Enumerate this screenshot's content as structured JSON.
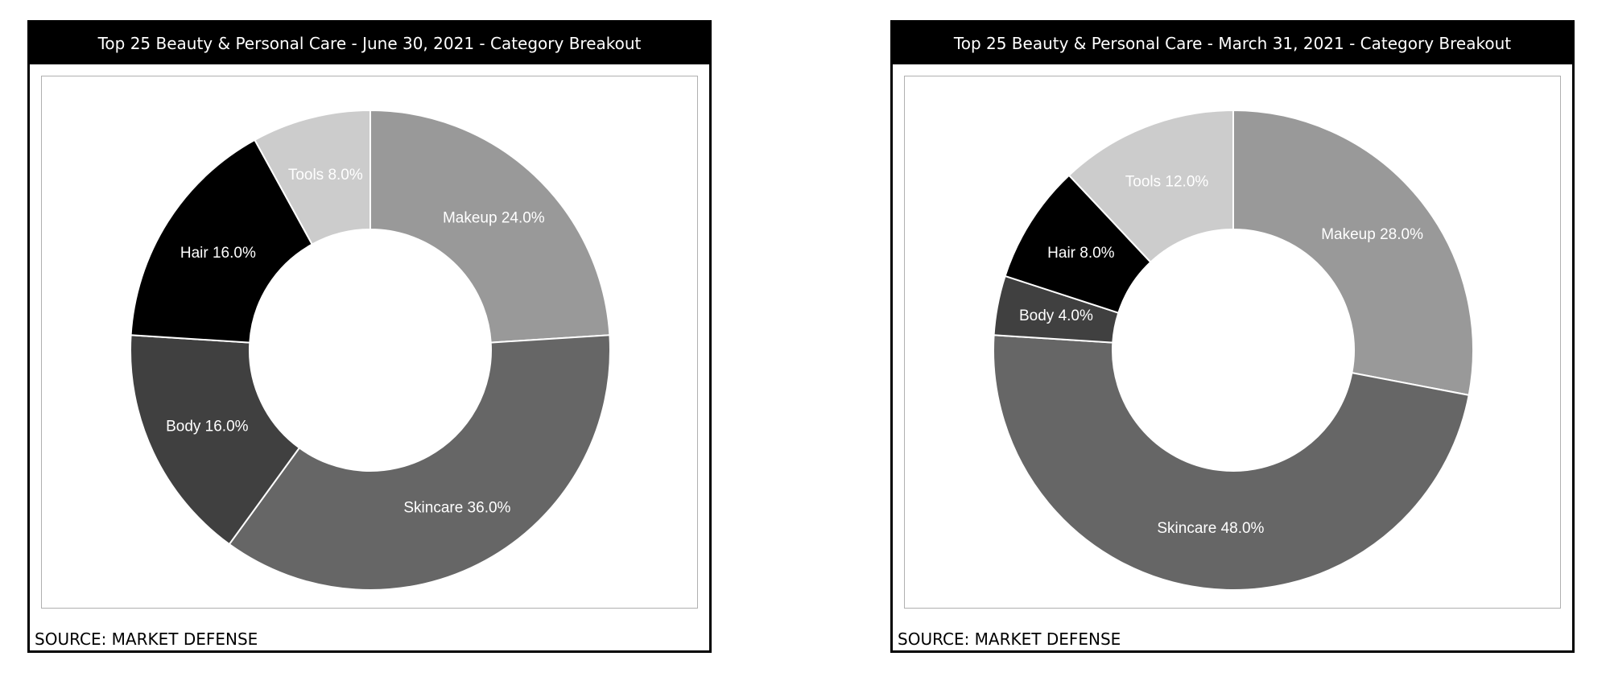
{
  "chart_data": [
    {
      "type": "pie",
      "title": "Top 25 Beauty & Personal Care - June 30, 2021 - Category Breakout",
      "source": "SOURCE: MARKET DEFENSE",
      "slices": [
        {
          "name": "Makeup",
          "value": 24.0,
          "label": "Makeup 24.0%",
          "color": "#999999",
          "text_color": "#ffffff"
        },
        {
          "name": "Skincare",
          "value": 36.0,
          "label": "Skincare 36.0%",
          "color": "#666666",
          "text_color": "#ffffff"
        },
        {
          "name": "Body",
          "value": 16.0,
          "label": "Body 16.0%",
          "color": "#404040",
          "text_color": "#ffffff"
        },
        {
          "name": "Hair",
          "value": 16.0,
          "label": "Hair 16.0%",
          "color": "#000000",
          "text_color": "#ffffff"
        },
        {
          "name": "Tools",
          "value": 8.0,
          "label": "Tools 8.0%",
          "color": "#cccccc",
          "text_color": "#ffffff"
        }
      ]
    },
    {
      "type": "pie",
      "title": "Top 25 Beauty & Personal Care - March 31, 2021 - Category Breakout",
      "source": "SOURCE: MARKET DEFENSE",
      "slices": [
        {
          "name": "Makeup",
          "value": 28.0,
          "label": "Makeup 28.0%",
          "color": "#999999",
          "text_color": "#ffffff"
        },
        {
          "name": "Skincare",
          "value": 48.0,
          "label": "Skincare 48.0%",
          "color": "#666666",
          "text_color": "#ffffff"
        },
        {
          "name": "Body",
          "value": 4.0,
          "label": "Body 4.0%",
          "color": "#404040",
          "text_color": "#ffffff"
        },
        {
          "name": "Hair",
          "value": 8.0,
          "label": "Hair 8.0%",
          "color": "#000000",
          "text_color": "#ffffff"
        },
        {
          "name": "Tools",
          "value": 12.0,
          "label": "Tools 12.0%",
          "color": "#cccccc",
          "text_color": "#ffffff"
        }
      ]
    }
  ]
}
